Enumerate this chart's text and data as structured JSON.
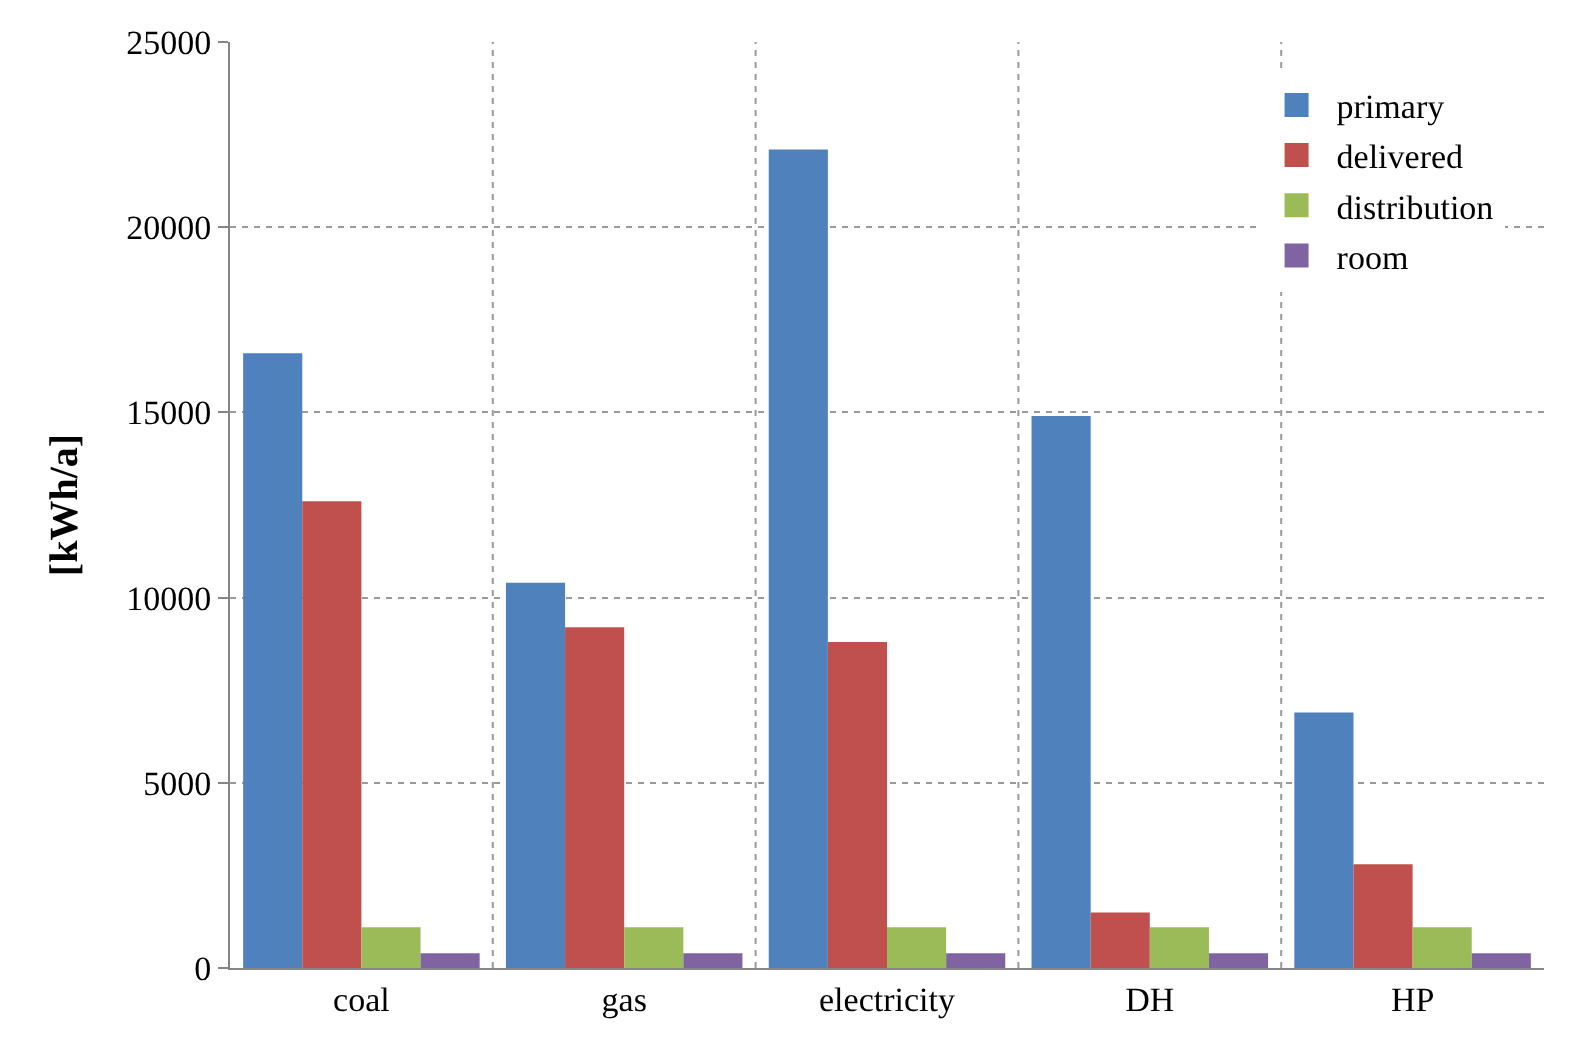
{
  "chart_data": {
    "type": "bar",
    "ylabel": "[kWh/a]",
    "categories": [
      "coal",
      "gas",
      "electricity",
      "DH",
      "HP"
    ],
    "series": [
      {
        "name": "primary",
        "color": "#4f81bd",
        "values": [
          16600,
          10400,
          22100,
          14900,
          6900
        ]
      },
      {
        "name": "delivered",
        "color": "#c0504d",
        "values": [
          12600,
          9200,
          8800,
          1500,
          2800
        ]
      },
      {
        "name": "distribution",
        "color": "#9bbb59",
        "values": [
          1100,
          1100,
          1100,
          1100,
          1100
        ]
      },
      {
        "name": "room",
        "color": "#8064a2",
        "values": [
          400,
          400,
          400,
          400,
          400
        ]
      }
    ],
    "ylim": [
      0,
      25000
    ],
    "yticks": [
      0,
      5000,
      10000,
      15000,
      20000,
      25000
    ],
    "grid": true,
    "legend": "top right"
  }
}
